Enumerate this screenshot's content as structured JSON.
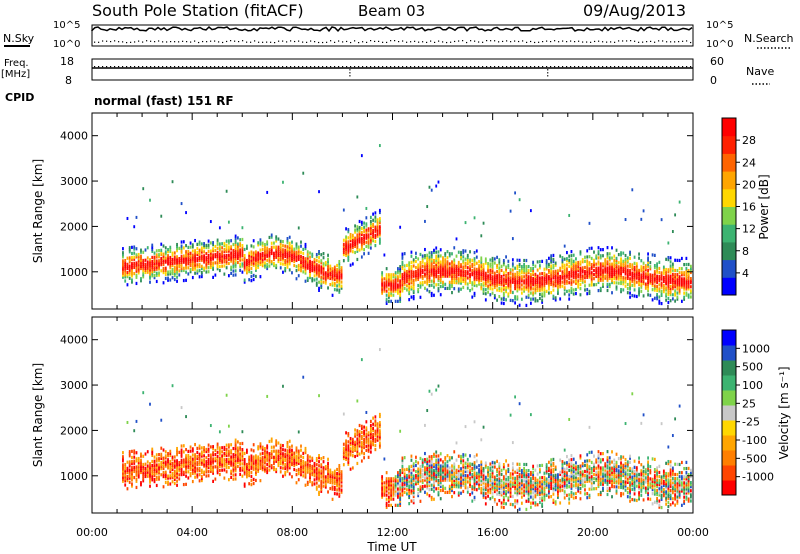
{
  "header": {
    "station": "South Pole Station (fitACF)",
    "beam": "Beam 03",
    "date": "09/Aug/2013"
  },
  "noise_panel": {
    "left_label": "N.Sky",
    "right_label": "N.Search",
    "left_ticks": [
      "10^5",
      "10^0"
    ],
    "right_ticks": [
      "10^5",
      "10^0"
    ]
  },
  "freq_panel": {
    "left_label_1": "Freq.",
    "left_label_2": "[MHz]",
    "left_ticks": [
      "18",
      "8"
    ],
    "right_label": "Nave",
    "right_ticks": [
      "60",
      "0"
    ]
  },
  "cpid_panel": {
    "label": "CPID",
    "value": "normal (fast) 151 RF"
  },
  "colors": {
    "power_scale": [
      "#0000ff",
      "#2050c8",
      "#2e8b57",
      "#3cb371",
      "#7fd34a",
      "#ffd700",
      "#ffa500",
      "#ff6400",
      "#ff2000",
      "#ff0000"
    ],
    "velocity_scale": [
      "#ff0000",
      "#ff4500",
      "#ff7f00",
      "#ffa500",
      "#ffd700",
      "#c8c8c8",
      "#7fd34a",
      "#3cb371",
      "#2e8b57",
      "#2050c8",
      "#0000ff"
    ]
  },
  "chart_data": [
    {
      "type": "heatmap",
      "title": "Power",
      "xlabel": "",
      "ylabel": "Slant Range [km]",
      "xlim": [
        0,
        24
      ],
      "ylim": [
        180,
        4500
      ],
      "y_ticks": [
        "1000",
        "2000",
        "3000",
        "4000"
      ],
      "colorbar_label": "Power [dB]",
      "colorbar_ticks": [
        "4",
        "8",
        "12",
        "16",
        "20",
        "24",
        "28"
      ],
      "colorbar_range": [
        0,
        30
      ]
    },
    {
      "type": "heatmap",
      "title": "Velocity",
      "xlabel": "Time UT",
      "ylabel": "Slant Range [km]",
      "xlim": [
        0,
        24
      ],
      "ylim": [
        180,
        4500
      ],
      "x_ticks": [
        "00:00",
        "04:00",
        "08:00",
        "12:00",
        "16:00",
        "20:00",
        "00:00"
      ],
      "y_ticks": [
        "1000",
        "2000",
        "3000",
        "4000"
      ],
      "colorbar_label": "Velocity [m s⁻¹]",
      "colorbar_ticks": [
        "1000",
        "500",
        "100",
        "25",
        "-25",
        "-100",
        "-500",
        "-1000"
      ]
    }
  ]
}
